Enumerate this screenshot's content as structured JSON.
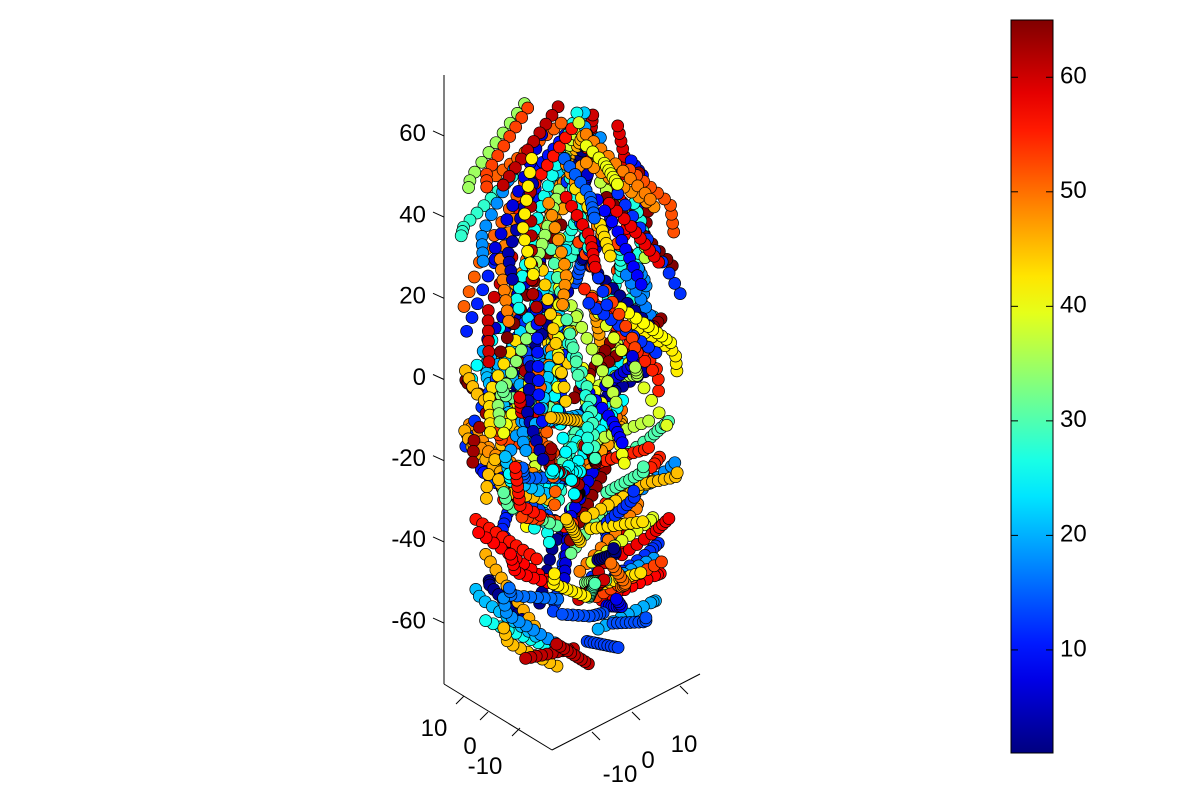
{
  "chart_data": {
    "type": "scatter",
    "title": "",
    "xlabel": "",
    "ylabel": "",
    "zlabel": "",
    "projection": "3d",
    "grid": false,
    "legend": "none",
    "x_ticks": [
      -10,
      0,
      10
    ],
    "y_ticks": [
      -10,
      0,
      10
    ],
    "z_ticks": [
      -60,
      -40,
      -20,
      0,
      20,
      40,
      60
    ],
    "xlim": [
      -17,
      17
    ],
    "ylim": [
      -17,
      17
    ],
    "zlim": [
      -75,
      75
    ],
    "marker": "filled circle, black edge",
    "colormap": "jet",
    "colorbar": {
      "location": "right",
      "ticks": [
        10,
        20,
        30,
        40,
        50,
        60
      ],
      "clim": [
        1,
        65
      ]
    },
    "strands": {
      "count": 210,
      "points_per_strand": 10,
      "color_value_range": [
        1,
        65
      ],
      "description": "point cloud of fibre-like strands filling a cylindrical column; upper half strands tilt one way, lower half the opposite way"
    }
  }
}
